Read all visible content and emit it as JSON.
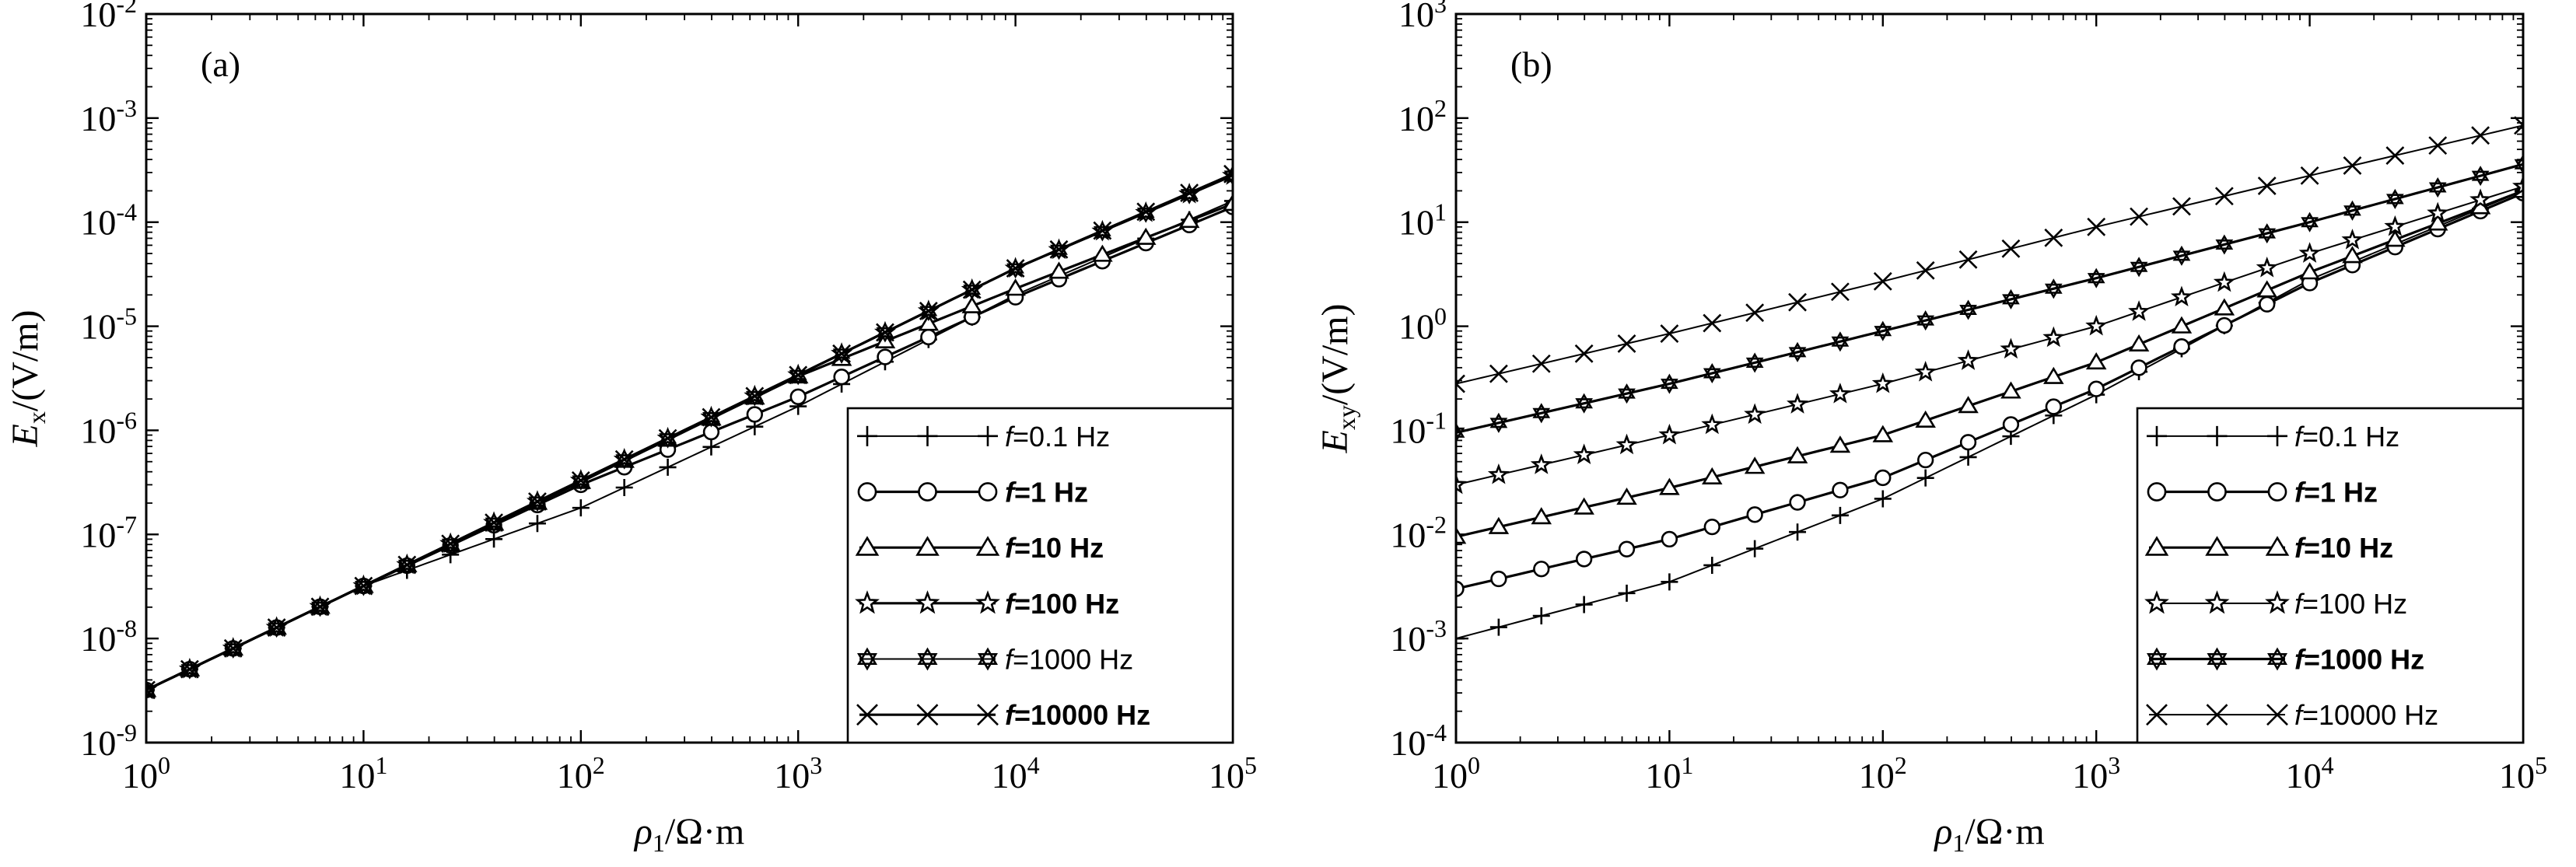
{
  "chart_data": [
    {
      "type": "line",
      "panel_label": "(a)",
      "xlabel": "ρ1/Ω·m",
      "xlabel_parts": {
        "sym": "ρ",
        "sub": "1",
        "unit": "/Ω·m"
      },
      "ylabel": "Ex/(V/m)",
      "ylabel_parts": {
        "sym": "E",
        "sub": "x",
        "unit": "/(V/m)"
      },
      "x_scale": "log",
      "y_scale": "log",
      "xlim": [
        1,
        100000
      ],
      "ylim": [
        1e-09,
        0.01
      ],
      "x_ticks": [
        {
          "base": "10",
          "exp": "0"
        },
        {
          "base": "10",
          "exp": "1"
        },
        {
          "base": "10",
          "exp": "2"
        },
        {
          "base": "10",
          "exp": "3"
        },
        {
          "base": "10",
          "exp": "4"
        },
        {
          "base": "10",
          "exp": "5"
        }
      ],
      "y_ticks": [
        {
          "base": "10",
          "exp": "-9"
        },
        {
          "base": "10",
          "exp": "-8"
        },
        {
          "base": "10",
          "exp": "-7"
        },
        {
          "base": "10",
          "exp": "-6"
        },
        {
          "base": "10",
          "exp": "-5"
        },
        {
          "base": "10",
          "exp": "-4"
        },
        {
          "base": "10",
          "exp": "-3"
        },
        {
          "base": "10",
          "exp": "-2"
        }
      ],
      "legend_position": "bottom-right",
      "series": [
        {
          "name": "f=0.1 Hz",
          "label_f": "f",
          "label_rest": "=0.1 Hz",
          "bold": false,
          "marker": "plus",
          "x": [
            1,
            10,
            100,
            1000,
            10000,
            100000
          ],
          "y": [
            3.2e-09,
            3.2e-08,
            1.8e-07,
            1.7e-06,
            2e-05,
            0.00016
          ]
        },
        {
          "name": "f=1 Hz",
          "label_f": "f",
          "label_rest": "=1 Hz",
          "bold": true,
          "marker": "circle",
          "x": [
            1,
            10,
            100,
            1000,
            10000,
            100000
          ],
          "y": [
            3.2e-09,
            3.2e-08,
            3e-07,
            2.1e-06,
            1.9e-05,
            0.00014
          ]
        },
        {
          "name": "f=10 Hz",
          "label_f": "f",
          "label_rest": "=10 Hz",
          "bold": true,
          "marker": "triangle",
          "x": [
            1,
            10,
            100,
            1000,
            10000,
            100000
          ],
          "y": [
            3.2e-09,
            3.2e-08,
            3.2e-07,
            3.3e-06,
            2.3e-05,
            0.00015
          ]
        },
        {
          "name": "f=100 Hz",
          "label_f": "f",
          "label_rest": "=100 Hz",
          "bold": true,
          "marker": "star",
          "x": [
            1,
            10,
            100,
            1000,
            10000,
            100000
          ],
          "y": [
            3.2e-09,
            3.2e-08,
            3.3e-07,
            3.4e-06,
            3.6e-05,
            0.00028
          ]
        },
        {
          "name": "f=1000 Hz",
          "label_f": "f",
          "label_rest": "=1000 Hz",
          "bold": false,
          "marker": "hexstar",
          "x": [
            1,
            10,
            100,
            1000,
            10000,
            100000
          ],
          "y": [
            3.2e-09,
            3.2e-08,
            3.3e-07,
            3.4e-06,
            3.6e-05,
            0.00028
          ]
        },
        {
          "name": "f=10000 Hz",
          "label_f": "f",
          "label_rest": "=10000 Hz",
          "bold": true,
          "marker": "cross",
          "x": [
            1,
            10,
            100,
            1000,
            10000,
            100000
          ],
          "y": [
            3.2e-09,
            3.2e-08,
            3.3e-07,
            3.4e-06,
            3.6e-05,
            0.00029
          ]
        }
      ]
    },
    {
      "type": "line",
      "panel_label": "(b)",
      "xlabel": "ρ1/Ω·m",
      "xlabel_parts": {
        "sym": "ρ",
        "sub": "1",
        "unit": "/Ω·m"
      },
      "ylabel": "Exy/(V/m)",
      "ylabel_parts": {
        "sym": "E",
        "sub": "xy",
        "unit": "/(V/m)"
      },
      "x_scale": "log",
      "y_scale": "log",
      "xlim": [
        1,
        100000
      ],
      "ylim": [
        0.0001,
        1000
      ],
      "x_ticks": [
        {
          "base": "10",
          "exp": "0"
        },
        {
          "base": "10",
          "exp": "1"
        },
        {
          "base": "10",
          "exp": "2"
        },
        {
          "base": "10",
          "exp": "3"
        },
        {
          "base": "10",
          "exp": "4"
        },
        {
          "base": "10",
          "exp": "5"
        }
      ],
      "y_ticks": [
        {
          "base": "10",
          "exp": "-4"
        },
        {
          "base": "10",
          "exp": "-3"
        },
        {
          "base": "10",
          "exp": "-2"
        },
        {
          "base": "10",
          "exp": "-1"
        },
        {
          "base": "10",
          "exp": "0"
        },
        {
          "base": "10",
          "exp": "1"
        },
        {
          "base": "10",
          "exp": "2"
        },
        {
          "base": "10",
          "exp": "3"
        }
      ],
      "y_tick_labels": [
        "10-4",
        "10-3",
        "10-2",
        "10-1",
        "10.0",
        "101",
        "102",
        "103"
      ],
      "legend_position": "bottom-right",
      "series": [
        {
          "name": "f=0.1 Hz",
          "label_f": "f",
          "label_rest": "=0.1 Hz",
          "bold": false,
          "marker": "plus",
          "x": [
            1,
            10,
            100,
            1000,
            10000,
            100000
          ],
          "y": [
            0.001,
            0.0035,
            0.022,
            0.22,
            2.8,
            20
          ]
        },
        {
          "name": "f=1 Hz",
          "label_f": "f",
          "label_rest": "=1 Hz",
          "bold": true,
          "marker": "circle",
          "x": [
            1,
            10,
            100,
            1000,
            10000,
            100000
          ],
          "y": [
            0.003,
            0.009,
            0.035,
            0.25,
            2.6,
            19
          ]
        },
        {
          "name": "f=10 Hz",
          "label_f": "f",
          "label_rest": "=10 Hz",
          "bold": true,
          "marker": "triangle",
          "x": [
            1,
            10,
            100,
            1000,
            10000,
            100000
          ],
          "y": [
            0.0095,
            0.028,
            0.09,
            0.45,
            3.3,
            20
          ]
        },
        {
          "name": "f=100 Hz",
          "label_f": "f",
          "label_rest": "=100 Hz",
          "bold": false,
          "marker": "star",
          "x": [
            1,
            10,
            100,
            1000,
            10000,
            100000
          ],
          "y": [
            0.03,
            0.09,
            0.28,
            1.0,
            5.0,
            22
          ]
        },
        {
          "name": "f=1000 Hz",
          "label_f": "f",
          "label_rest": "=1000 Hz",
          "bold": true,
          "marker": "hexstar",
          "x": [
            1,
            10,
            100,
            1000,
            10000,
            100000
          ],
          "y": [
            0.095,
            0.28,
            0.9,
            2.9,
            10,
            36
          ]
        },
        {
          "name": "f=10000 Hz",
          "label_f": "f",
          "label_rest": "=10000 Hz",
          "bold": false,
          "marker": "cross",
          "x": [
            1,
            10,
            100,
            1000,
            10000,
            100000
          ],
          "y": [
            0.28,
            0.85,
            2.7,
            9,
            28,
            85
          ]
        }
      ]
    }
  ]
}
